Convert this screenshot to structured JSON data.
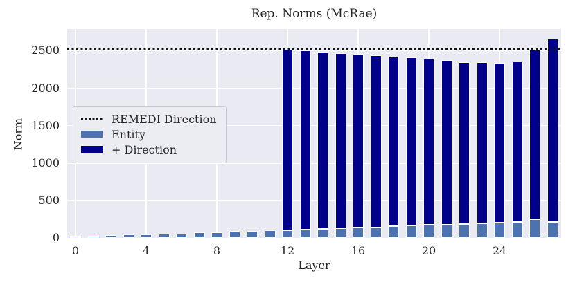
{
  "chart_data": {
    "type": "bar",
    "stacked": true,
    "title": "Rep. Norms (McRae)",
    "xlabel": "Layer",
    "ylabel": "Norm",
    "categories": [
      0,
      1,
      2,
      3,
      4,
      5,
      6,
      7,
      8,
      9,
      10,
      11,
      12,
      13,
      14,
      15,
      16,
      17,
      18,
      19,
      20,
      21,
      22,
      23,
      24,
      25,
      26,
      27
    ],
    "xticks": [
      0,
      4,
      8,
      12,
      16,
      20,
      24
    ],
    "yticks": [
      0,
      500,
      1000,
      1500,
      2000,
      2500
    ],
    "ylim": [
      0,
      2790
    ],
    "grid": true,
    "legend_position": "center-left-inside",
    "colors": {
      "plot_background": "#eaeaf2",
      "grid": "#ffffff",
      "text": "#262626",
      "reference": "#141414"
    },
    "reference_line": {
      "label": "REMEDI Direction",
      "value": 2515,
      "style": "dotted"
    },
    "series": [
      {
        "name": "Entity",
        "color": "#4c72b0",
        "values": [
          32,
          32,
          36,
          42,
          48,
          56,
          60,
          70,
          78,
          88,
          94,
          98,
          100,
          110,
          118,
          126,
          135,
          141,
          153,
          165,
          172,
          180,
          183,
          190,
          202,
          215,
          248,
          216
        ]
      },
      {
        "name": "+ Direction",
        "color": "#00008b",
        "values": [
          0,
          0,
          0,
          0,
          0,
          0,
          0,
          0,
          0,
          0,
          0,
          0,
          2420,
          2395,
          2367,
          2344,
          2320,
          2299,
          2267,
          2243,
          2218,
          2192,
          2167,
          2153,
          2133,
          2137,
          2264,
          2449
        ]
      }
    ]
  }
}
